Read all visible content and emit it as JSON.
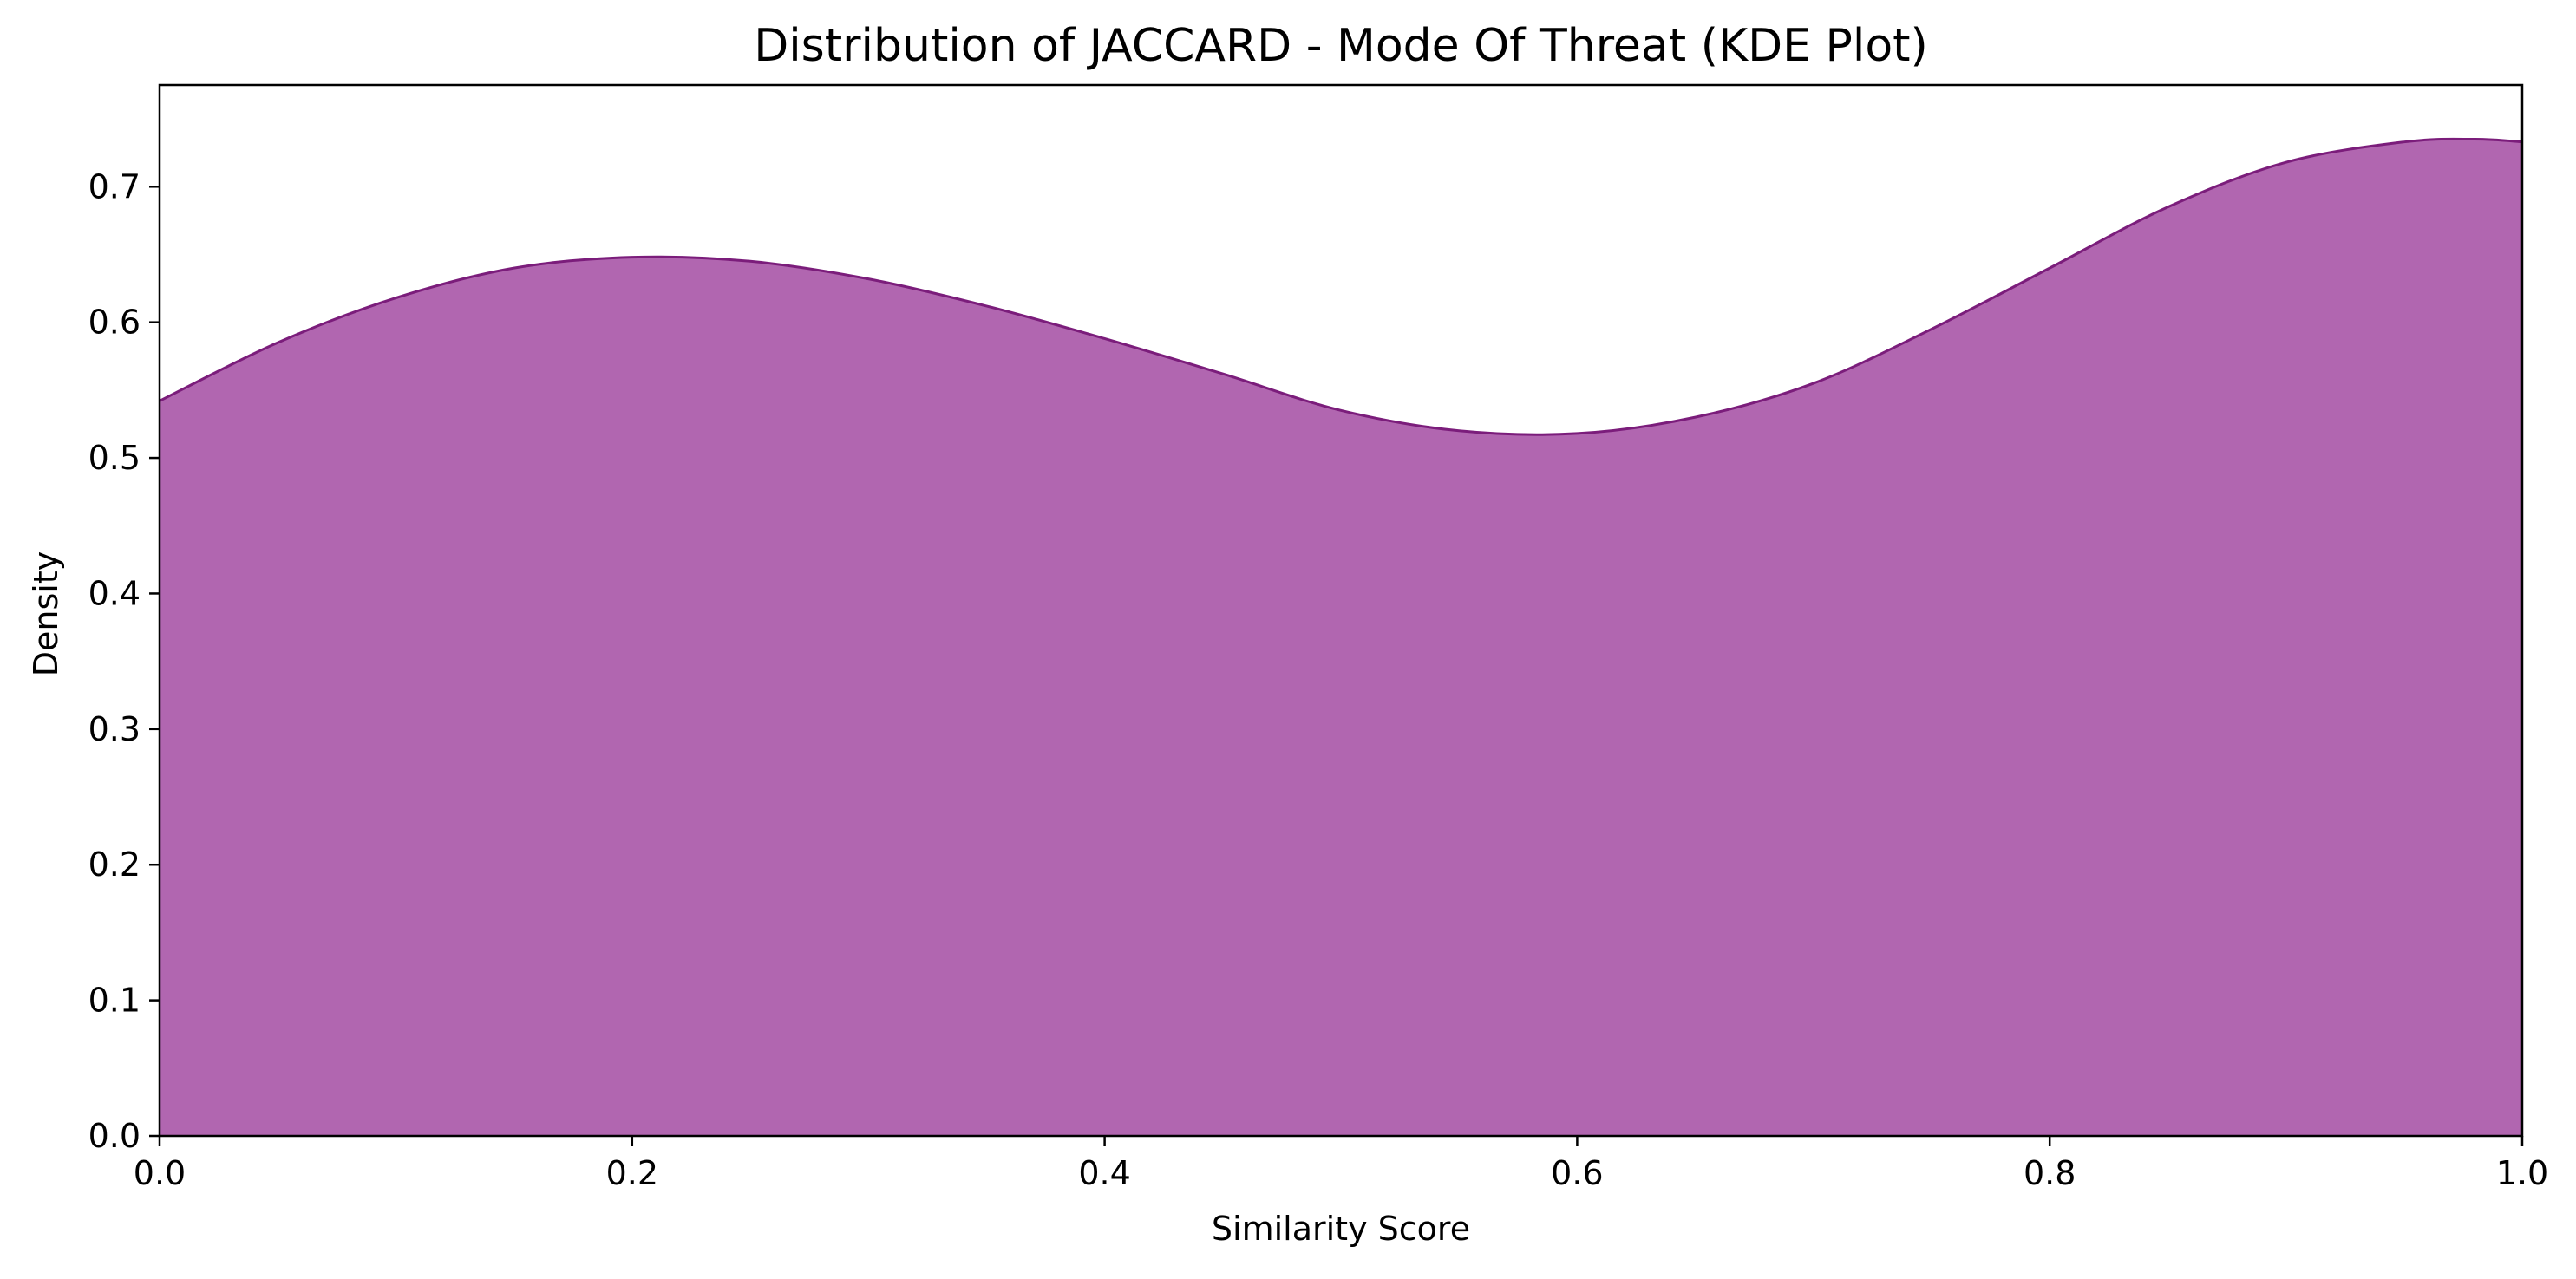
{
  "chart_data": {
    "type": "area",
    "title": "Distribution of JACCARD - Mode Of Threat (KDE Plot)",
    "xlabel": "Similarity Score",
    "ylabel": "Density",
    "xlim": [
      0.0,
      1.0
    ],
    "ylim": [
      0.0,
      0.775
    ],
    "x_ticks": [
      "0.0",
      "0.2",
      "0.4",
      "0.6",
      "0.8",
      "1.0"
    ],
    "y_ticks": [
      "0.0",
      "0.1",
      "0.2",
      "0.3",
      "0.4",
      "0.5",
      "0.6",
      "0.7"
    ],
    "grid": false,
    "legend": "none",
    "fill_color": "#b166b0",
    "line_color": "#7b1d7b",
    "series": [
      {
        "x": [
          0.0,
          0.05,
          0.1,
          0.15,
          0.2,
          0.25,
          0.3,
          0.35,
          0.4,
          0.45,
          0.5,
          0.55,
          0.6,
          0.65,
          0.7,
          0.75,
          0.8,
          0.85,
          0.9,
          0.95,
          0.98,
          1.0
        ],
        "y": [
          0.542,
          0.585,
          0.618,
          0.64,
          0.648,
          0.645,
          0.632,
          0.612,
          0.588,
          0.562,
          0.535,
          0.52,
          0.518,
          0.53,
          0.555,
          0.595,
          0.64,
          0.685,
          0.718,
          0.733,
          0.735,
          0.733
        ]
      }
    ]
  }
}
